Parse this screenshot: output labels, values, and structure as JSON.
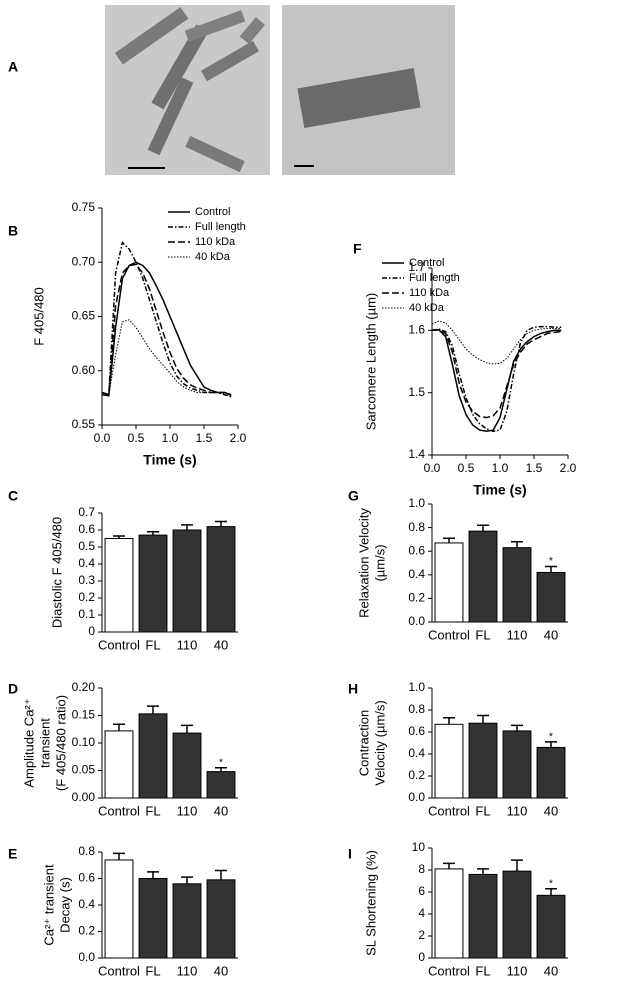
{
  "image_panel": {
    "label": "A"
  },
  "chart_data": [
    {
      "type": "line",
      "panel": "B",
      "ylabel": [
        "F 405/480"
      ],
      "xlabel": "Time (s)",
      "xlim": [
        0,
        2
      ],
      "xticks": [
        {
          "value": 0,
          "label": "0.0"
        },
        0.5,
        {
          "value": 1,
          "label": "1.0"
        },
        1.5,
        {
          "value": 2,
          "label": "2.0"
        }
      ],
      "ylim": [
        0.55,
        0.75
      ],
      "yticks": [
        0.55,
        {
          "value": 0.6,
          "label": "0.60"
        },
        0.65,
        {
          "value": 0.7,
          "label": "0.70"
        },
        0.75
      ],
      "x": [
        0,
        0.1,
        0.2,
        0.3,
        0.4,
        0.5,
        0.6,
        0.7,
        0.8,
        0.9,
        1.0,
        1.1,
        1.2,
        1.3,
        1.4,
        1.5,
        1.6,
        1.7,
        1.8,
        1.9
      ],
      "series": [
        {
          "name": "Control",
          "color": "#000000",
          "dash": "solid",
          "values": [
            0.578,
            0.577,
            0.64,
            0.685,
            0.697,
            0.7,
            0.697,
            0.69,
            0.678,
            0.665,
            0.65,
            0.635,
            0.62,
            0.605,
            0.595,
            0.585,
            0.582,
            0.58,
            0.58,
            0.578
          ]
        },
        {
          "name": "Full length",
          "color": "#000000",
          "dash": "dash-dot",
          "values": [
            0.58,
            0.578,
            0.69,
            0.718,
            0.712,
            0.7,
            0.685,
            0.665,
            0.645,
            0.625,
            0.607,
            0.595,
            0.588,
            0.584,
            0.582,
            0.58,
            0.58,
            0.58,
            0.578,
            0.576
          ]
        },
        {
          "name": "110 kDa",
          "color": "#000000",
          "dash": "dash",
          "values": [
            0.58,
            0.578,
            0.66,
            0.69,
            0.697,
            0.698,
            0.69,
            0.675,
            0.655,
            0.635,
            0.617,
            0.602,
            0.593,
            0.587,
            0.584,
            0.582,
            0.58,
            0.58,
            0.58,
            0.577
          ]
        },
        {
          "name": "40 kDa",
          "color": "#000000",
          "dash": "dot",
          "values": [
            0.58,
            0.578,
            0.615,
            0.645,
            0.647,
            0.64,
            0.63,
            0.62,
            0.612,
            0.605,
            0.598,
            0.59,
            0.585,
            0.582,
            0.58,
            0.58,
            0.58,
            0.58,
            0.58,
            0.577
          ]
        }
      ]
    },
    {
      "type": "line",
      "panel": "F",
      "ylabel": [
        "Sarcomere Length (µm)"
      ],
      "xlabel": "Time (s)",
      "xlim": [
        0,
        2
      ],
      "xticks": [
        {
          "value": 0,
          "label": "0.0"
        },
        0.5,
        {
          "value": 1,
          "label": "1.0"
        },
        1.5,
        {
          "value": 2,
          "label": "2.0"
        }
      ],
      "ylim": [
        1.4,
        1.7
      ],
      "yticks": [
        1.4,
        1.5,
        1.6,
        1.7
      ],
      "x": [
        0,
        0.1,
        0.2,
        0.3,
        0.4,
        0.5,
        0.6,
        0.7,
        0.8,
        0.9,
        1.0,
        1.1,
        1.2,
        1.3,
        1.4,
        1.5,
        1.6,
        1.7,
        1.8,
        1.9
      ],
      "series": [
        {
          "name": "Control",
          "color": "#000000",
          "dash": "solid",
          "values": [
            1.6,
            1.601,
            1.59,
            1.545,
            1.495,
            1.465,
            1.448,
            1.44,
            1.438,
            1.44,
            1.46,
            1.505,
            1.55,
            1.57,
            1.582,
            1.59,
            1.595,
            1.598,
            1.6,
            1.6
          ]
        },
        {
          "name": "Full length",
          "color": "#000000",
          "dash": "dash-dot",
          "values": [
            1.6,
            1.602,
            1.598,
            1.575,
            1.53,
            1.492,
            1.465,
            1.45,
            1.442,
            1.438,
            1.44,
            1.47,
            1.53,
            1.58,
            1.6,
            1.605,
            1.606,
            1.606,
            1.605,
            1.605
          ]
        },
        {
          "name": "110 kDa",
          "color": "#000000",
          "dash": "dash",
          "values": [
            1.6,
            1.601,
            1.595,
            1.565,
            1.515,
            1.485,
            1.47,
            1.462,
            1.46,
            1.463,
            1.475,
            1.51,
            1.545,
            1.565,
            1.578,
            1.585,
            1.59,
            1.595,
            1.597,
            1.598
          ]
        },
        {
          "name": "40 kDa",
          "color": "#000000",
          "dash": "dot",
          "values": [
            1.61,
            1.615,
            1.612,
            1.6,
            1.585,
            1.57,
            1.56,
            1.553,
            1.548,
            1.546,
            1.547,
            1.555,
            1.57,
            1.585,
            1.595,
            1.6,
            1.602,
            1.603,
            1.603,
            1.603
          ]
        }
      ]
    },
    {
      "type": "bar",
      "panel": "C",
      "ylabel": [
        "Diastolic F 405/480"
      ],
      "ylim": [
        0,
        0.7
      ],
      "yticks": [
        0,
        0.1,
        0.2,
        0.3,
        0.4,
        0.5,
        0.6,
        0.7
      ],
      "categories": [
        "Control",
        "FL",
        "110",
        "40"
      ],
      "values": [
        0.55,
        0.57,
        0.6,
        0.62
      ],
      "errors": [
        0.015,
        0.02,
        0.03,
        0.03
      ],
      "significance": [
        null,
        null,
        null,
        null
      ],
      "colors": [
        "#ffffff",
        "#333333",
        "#333333",
        "#333333"
      ]
    },
    {
      "type": "bar",
      "panel": "G",
      "ylabel": [
        "Relaxation Velocity",
        "(µm/s)"
      ],
      "ylim": [
        0,
        1
      ],
      "yticks": [
        {
          "value": 0,
          "label": "0.0"
        },
        0.2,
        0.4,
        0.6,
        0.8,
        {
          "value": 1,
          "label": "1.0"
        }
      ],
      "categories": [
        "Control",
        "FL",
        "110",
        "40"
      ],
      "values": [
        0.67,
        0.77,
        0.63,
        0.42
      ],
      "errors": [
        0.04,
        0.05,
        0.05,
        0.05
      ],
      "significance": [
        null,
        null,
        null,
        "*"
      ],
      "colors": [
        "#ffffff",
        "#333333",
        "#333333",
        "#333333"
      ]
    },
    {
      "type": "bar",
      "panel": "D",
      "ylabel": [
        "Amplitude Ca²⁺",
        "transient",
        "(F 405/480 ratio)"
      ],
      "ylim": [
        0,
        0.2
      ],
      "yticks": [
        {
          "value": 0,
          "label": "0.00"
        },
        0.05,
        {
          "value": 0.1,
          "label": "0.10"
        },
        0.15,
        {
          "value": 0.2,
          "label": "0.20"
        }
      ],
      "categories": [
        "Control",
        "FL",
        "110",
        "40"
      ],
      "values": [
        0.122,
        0.153,
        0.118,
        0.048
      ],
      "errors": [
        0.012,
        0.014,
        0.014,
        0.007
      ],
      "significance": [
        null,
        null,
        null,
        "*"
      ],
      "colors": [
        "#ffffff",
        "#333333",
        "#333333",
        "#333333"
      ]
    },
    {
      "type": "bar",
      "panel": "H",
      "ylabel": [
        "Contraction",
        "Velocity (µm/s)"
      ],
      "ylim": [
        0,
        1
      ],
      "yticks": [
        {
          "value": 0,
          "label": "0.0"
        },
        0.2,
        0.4,
        0.6,
        0.8,
        {
          "value": 1,
          "label": "1.0"
        }
      ],
      "categories": [
        "Control",
        "FL",
        "110",
        "40"
      ],
      "values": [
        0.67,
        0.68,
        0.61,
        0.46
      ],
      "errors": [
        0.06,
        0.07,
        0.05,
        0.05
      ],
      "significance": [
        null,
        null,
        null,
        "*"
      ],
      "colors": [
        "#ffffff",
        "#333333",
        "#333333",
        "#333333"
      ]
    },
    {
      "type": "bar",
      "panel": "E",
      "ylabel": [
        "Ca²⁺ transient",
        "Decay (s)"
      ],
      "ylim": [
        0,
        0.8
      ],
      "yticks": [
        {
          "value": 0,
          "label": "0.0"
        },
        0.2,
        0.4,
        0.6,
        0.8
      ],
      "categories": [
        "Control",
        "FL",
        "110",
        "40"
      ],
      "values": [
        0.74,
        0.6,
        0.56,
        0.59
      ],
      "errors": [
        0.05,
        0.05,
        0.05,
        0.07
      ],
      "significance": [
        null,
        null,
        null,
        null
      ],
      "colors": [
        "#ffffff",
        "#333333",
        "#333333",
        "#333333"
      ]
    },
    {
      "type": "bar",
      "panel": "I",
      "ylabel": [
        "SL Shortening (%)"
      ],
      "ylim": [
        0,
        10
      ],
      "yticks": [
        0,
        2,
        4,
        6,
        8,
        10
      ],
      "categories": [
        "Control",
        "FL",
        "110",
        "40"
      ],
      "values": [
        8.1,
        7.6,
        7.9,
        5.7
      ],
      "errors": [
        0.5,
        0.5,
        1.0,
        0.6
      ],
      "significance": [
        null,
        null,
        null,
        "*"
      ],
      "colors": [
        "#ffffff",
        "#333333",
        "#333333",
        "#333333"
      ]
    }
  ]
}
